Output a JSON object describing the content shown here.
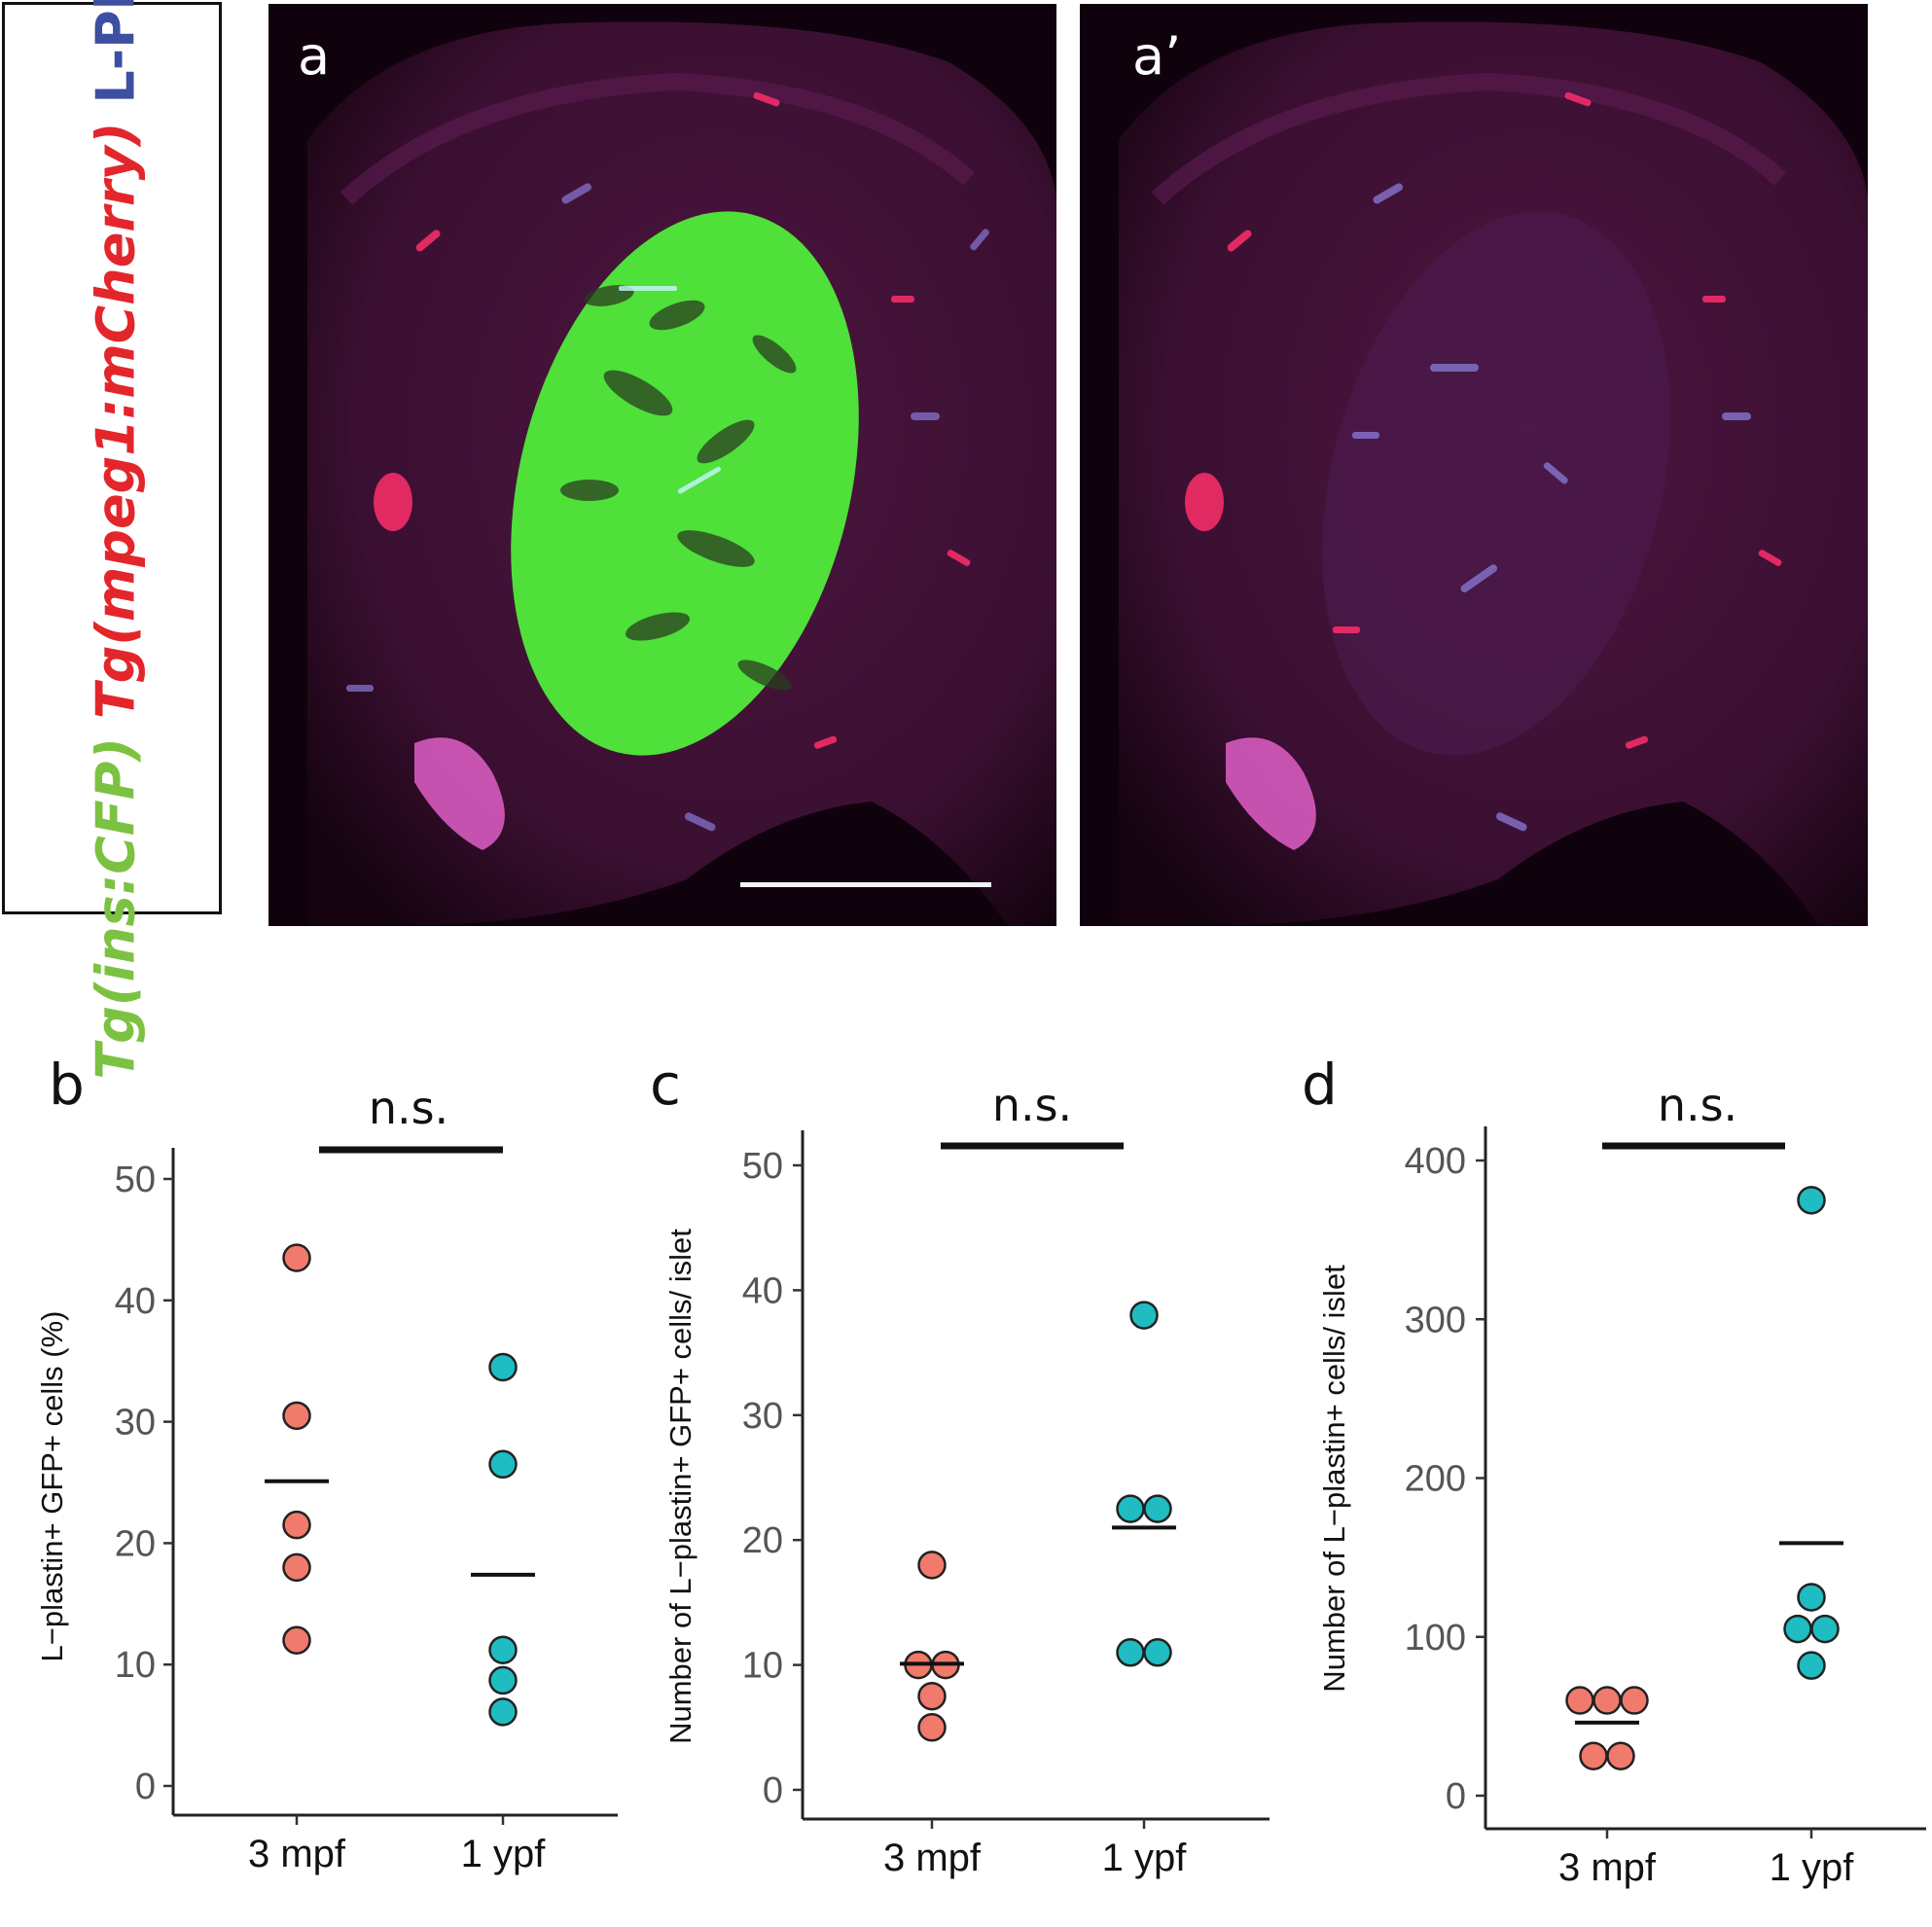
{
  "legend": {
    "green_label": "Tg(ins:CFP)",
    "red_label": "Tg(mpeg1:mCherry)",
    "blue_label": "L-Plastin"
  },
  "images": [
    {
      "label": "a"
    },
    {
      "label": "a’"
    }
  ],
  "colors": {
    "group_3mpf": "#f07a6b",
    "group_1ypf": "#1fbcc2",
    "islet_green": "#4fe03a",
    "tissue_magenta": "#5a1848",
    "macrophage_red": "#ff2f6c",
    "lplastin_blue": "#8a7cd8"
  },
  "chart_data": [
    {
      "panel": "b",
      "type": "scatter",
      "categories": [
        "3 mpf",
        "1 ypf"
      ],
      "ylabel": "L−plastin+ GFP+ cells (%)",
      "ylim": [
        0,
        50
      ],
      "yticks": [
        0,
        10,
        20,
        30,
        40,
        50
      ],
      "significance": "n.s.",
      "series": [
        {
          "category": "3 mpf",
          "values": [
            43.5,
            30.5,
            21.5,
            18,
            12
          ],
          "mean": 25.1
        },
        {
          "category": "1 ypf",
          "values": [
            34.5,
            26.5,
            11.2,
            8.7,
            6.1
          ],
          "mean": 17.4
        }
      ]
    },
    {
      "panel": "c",
      "type": "scatter",
      "categories": [
        "3 mpf",
        "1 ypf"
      ],
      "ylabel": "Number of L−plastin+ GFP+ cells/ islet",
      "ylim": [
        0,
        50
      ],
      "yticks": [
        0,
        10,
        20,
        30,
        40,
        50
      ],
      "significance": "n.s.",
      "series": [
        {
          "category": "3 mpf",
          "values": [
            18,
            10,
            10,
            7.5,
            5
          ],
          "mean": 10.1
        },
        {
          "category": "1 ypf",
          "values": [
            38,
            22.5,
            22.5,
            11,
            11
          ],
          "mean": 21
        }
      ]
    },
    {
      "panel": "d",
      "type": "scatter",
      "categories": [
        "3 mpf",
        "1 ypf"
      ],
      "ylabel": "Number of L−plastin+ cells/ islet",
      "ylim": [
        0,
        400
      ],
      "yticks": [
        0,
        100,
        200,
        300,
        400
      ],
      "significance": "n.s.",
      "series": [
        {
          "category": "3 mpf",
          "values": [
            60,
            60,
            60,
            25,
            25
          ],
          "mean": 46
        },
        {
          "category": "1 ypf",
          "values": [
            375,
            125,
            105,
            105,
            82
          ],
          "mean": 159
        }
      ]
    }
  ]
}
